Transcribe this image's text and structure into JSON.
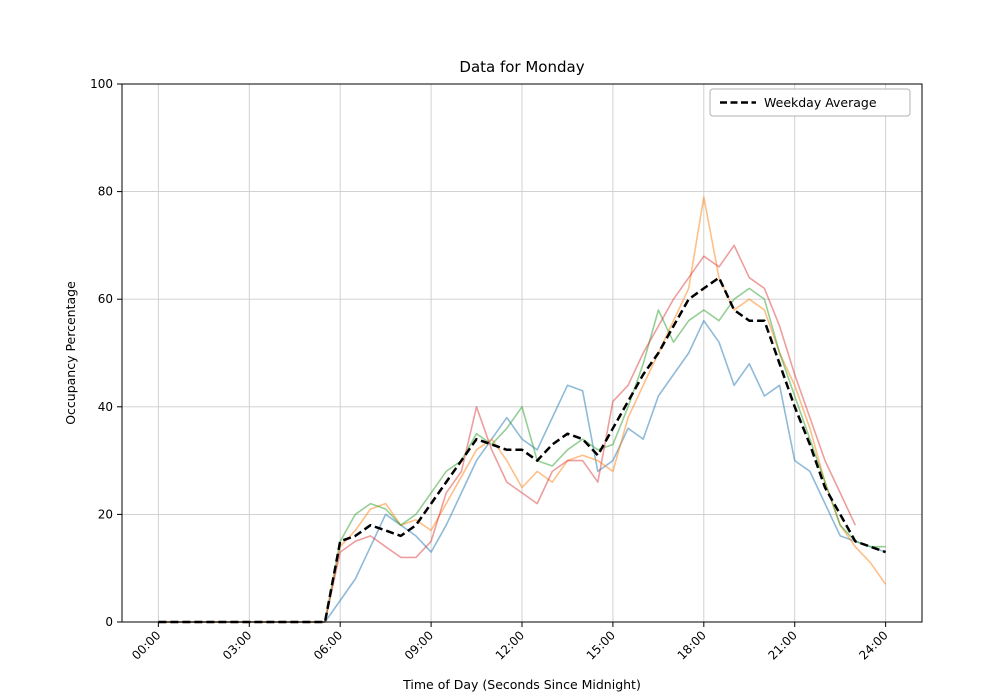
{
  "legend": {
    "label": "Weekday Average"
  },
  "chart_data": {
    "type": "line",
    "title": "Data for Monday",
    "xlabel": "Time of Day (Seconds Since Midnight)",
    "ylabel": "Occupancy Percentage",
    "grid": true,
    "legend_position": "upper right",
    "ylim": [
      0,
      100
    ],
    "xlim_seconds": [
      -4320,
      90720
    ],
    "y_ticks": [
      0,
      20,
      40,
      60,
      80,
      100
    ],
    "x_tick_hours": [
      0,
      3,
      6,
      9,
      12,
      15,
      18,
      21,
      24
    ],
    "x_tick_labels": [
      "00:00",
      "03:00",
      "06:00",
      "09:00",
      "12:00",
      "15:00",
      "18:00",
      "21:00",
      "24:00"
    ],
    "x_hours": [
      0,
      0.5,
      1,
      1.5,
      2,
      2.5,
      3,
      3.5,
      4,
      4.5,
      5,
      5.5,
      6,
      6.5,
      7,
      7.5,
      8,
      8.5,
      9,
      9.5,
      10,
      10.5,
      11,
      11.5,
      12,
      12.5,
      13,
      13.5,
      14,
      14.5,
      15,
      15.5,
      16,
      16.5,
      17,
      17.5,
      18,
      18.5,
      19,
      19.5,
      20,
      20.5,
      21,
      21.5,
      22,
      22.5,
      23,
      23.5,
      24
    ],
    "series": [
      {
        "id": "occupancy-week-1",
        "label": null,
        "color": "#1f77b4",
        "alpha": 0.5,
        "width": 1.6,
        "dashed": false,
        "values": [
          0,
          0,
          0,
          0,
          0,
          0,
          0,
          0,
          0,
          0,
          0,
          0,
          4,
          8,
          14,
          20,
          18,
          16,
          13,
          18,
          24,
          30,
          34,
          38,
          34,
          32,
          38,
          44,
          43,
          28,
          30,
          36,
          34,
          42,
          46,
          50,
          56,
          52,
          44,
          48,
          42,
          44,
          30,
          28,
          22,
          16,
          15,
          14,
          13
        ]
      },
      {
        "id": "occupancy-week-2",
        "label": null,
        "color": "#ff7f0e",
        "alpha": 0.5,
        "width": 1.6,
        "dashed": false,
        "values": [
          0,
          0,
          0,
          0,
          0,
          0,
          0,
          0,
          0,
          0,
          0,
          0,
          14,
          17,
          21,
          22,
          18,
          19,
          17,
          22,
          27,
          32,
          34,
          30,
          25,
          28,
          26,
          30,
          31,
          30,
          28,
          38,
          44,
          50,
          56,
          62,
          79,
          64,
          58,
          60,
          58,
          50,
          44,
          36,
          26,
          18,
          14,
          11,
          7
        ]
      },
      {
        "id": "occupancy-week-3",
        "label": null,
        "color": "#2ca02c",
        "alpha": 0.5,
        "width": 1.6,
        "dashed": false,
        "values": [
          0,
          0,
          0,
          0,
          0,
          0,
          0,
          0,
          0,
          0,
          0,
          0,
          15,
          20,
          22,
          21,
          18,
          20,
          24,
          28,
          30,
          35,
          33,
          36,
          40,
          30,
          29,
          32,
          34,
          32,
          33,
          40,
          48,
          58,
          52,
          56,
          58,
          56,
          60,
          62,
          60,
          50,
          42,
          34,
          26,
          18,
          15,
          14,
          14
        ]
      },
      {
        "id": "occupancy-week-4",
        "label": null,
        "color": "#d62728",
        "alpha": 0.45,
        "width": 1.6,
        "dashed": false,
        "values": [
          0,
          0,
          0,
          0,
          0,
          0,
          0,
          0,
          0,
          0,
          0,
          0,
          13,
          15,
          16,
          14,
          12,
          12,
          15,
          24,
          28,
          40,
          32,
          26,
          24,
          22,
          28,
          30,
          30,
          26,
          41,
          44,
          50,
          55,
          60,
          64,
          68,
          66,
          70,
          64,
          62,
          55,
          46,
          38,
          30,
          24,
          18,
          null,
          null
        ]
      },
      {
        "id": "weekday-average",
        "label": "Weekday Average",
        "color": "#000000",
        "alpha": 1,
        "width": 2.5,
        "dashed": true,
        "values": [
          0,
          0,
          0,
          0,
          0,
          0,
          0,
          0,
          0,
          0,
          0,
          0,
          15,
          16,
          18,
          17,
          16,
          18,
          22,
          26,
          30,
          34,
          33,
          32,
          32,
          30,
          33,
          35,
          34,
          31,
          36,
          41,
          46,
          50,
          55,
          60,
          62,
          64,
          58,
          56,
          56,
          48,
          40,
          33,
          25,
          20,
          15,
          14,
          13
        ]
      }
    ]
  }
}
